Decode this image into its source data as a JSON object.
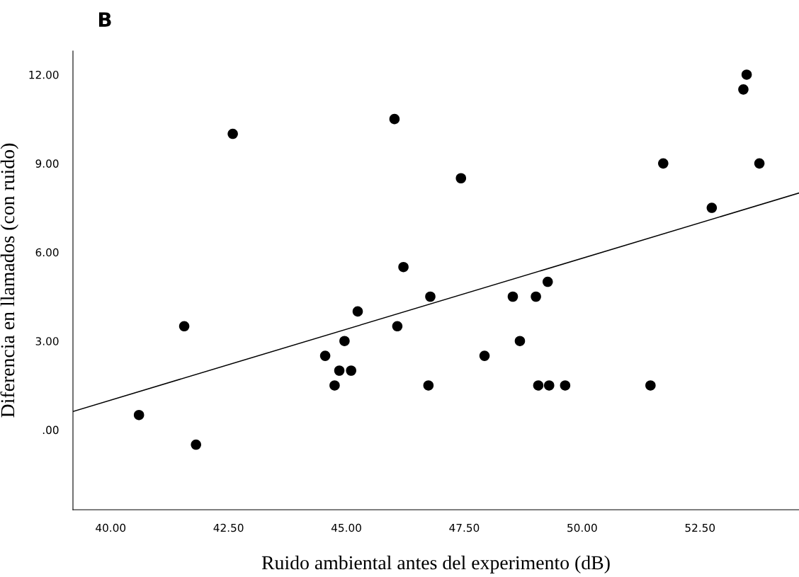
{
  "chart_data": {
    "type": "scatter",
    "xlabel": "Ruido ambiental antes del experimento (dB)",
    "ylabel": "Diferencia en llamados (con ruido)",
    "annotations": [
      "B"
    ],
    "xlim": [
      39.2,
      54.6
    ],
    "xticks": [
      {
        "value": 40,
        "label": "40.00"
      },
      {
        "value": 42.5,
        "label": "42.50"
      },
      {
        "value": 45,
        "label": "45.00"
      },
      {
        "value": 47.5,
        "label": "47.50"
      },
      {
        "value": 50,
        "label": "50.00"
      },
      {
        "value": 52.5,
        "label": "52.50"
      }
    ],
    "ylim": [
      -2.7,
      12.8
    ],
    "yticks": [
      {
        "value": 0,
        "label": ".00"
      },
      {
        "value": 3,
        "label": "3.00"
      },
      {
        "value": 6,
        "label": "6.00"
      },
      {
        "value": 9,
        "label": "9.00"
      },
      {
        "value": 12,
        "label": "12.00"
      }
    ],
    "grid": false,
    "series": [
      {
        "marker": "circle",
        "color": "#000000",
        "x": [
          40.6,
          41.81,
          41.56,
          42.59,
          46.02,
          46.21,
          46.78,
          45.24,
          46.08,
          44.96,
          44.55,
          44.85,
          45.1,
          44.75,
          46.74,
          47.43,
          48.53,
          49.02,
          49.27,
          48.68,
          47.93,
          49.07,
          49.3,
          49.64,
          51.45,
          51.72,
          52.75,
          53.42,
          53.49,
          53.76
        ],
        "values": [
          0.5,
          -0.5,
          3.5,
          10,
          10.5,
          5.5,
          4.5,
          4,
          3.5,
          3,
          2.5,
          2,
          2,
          1.5,
          1.5,
          8.5,
          4.5,
          4.5,
          5,
          3,
          2.5,
          1.5,
          1.5,
          1.5,
          1.5,
          9,
          7.5,
          11.5,
          12,
          9
        ]
      },
      {
        "type": "line",
        "color": "#000000",
        "x": [
          39.2,
          54.6
        ],
        "values": [
          0.62,
          8.0
        ]
      }
    ]
  }
}
